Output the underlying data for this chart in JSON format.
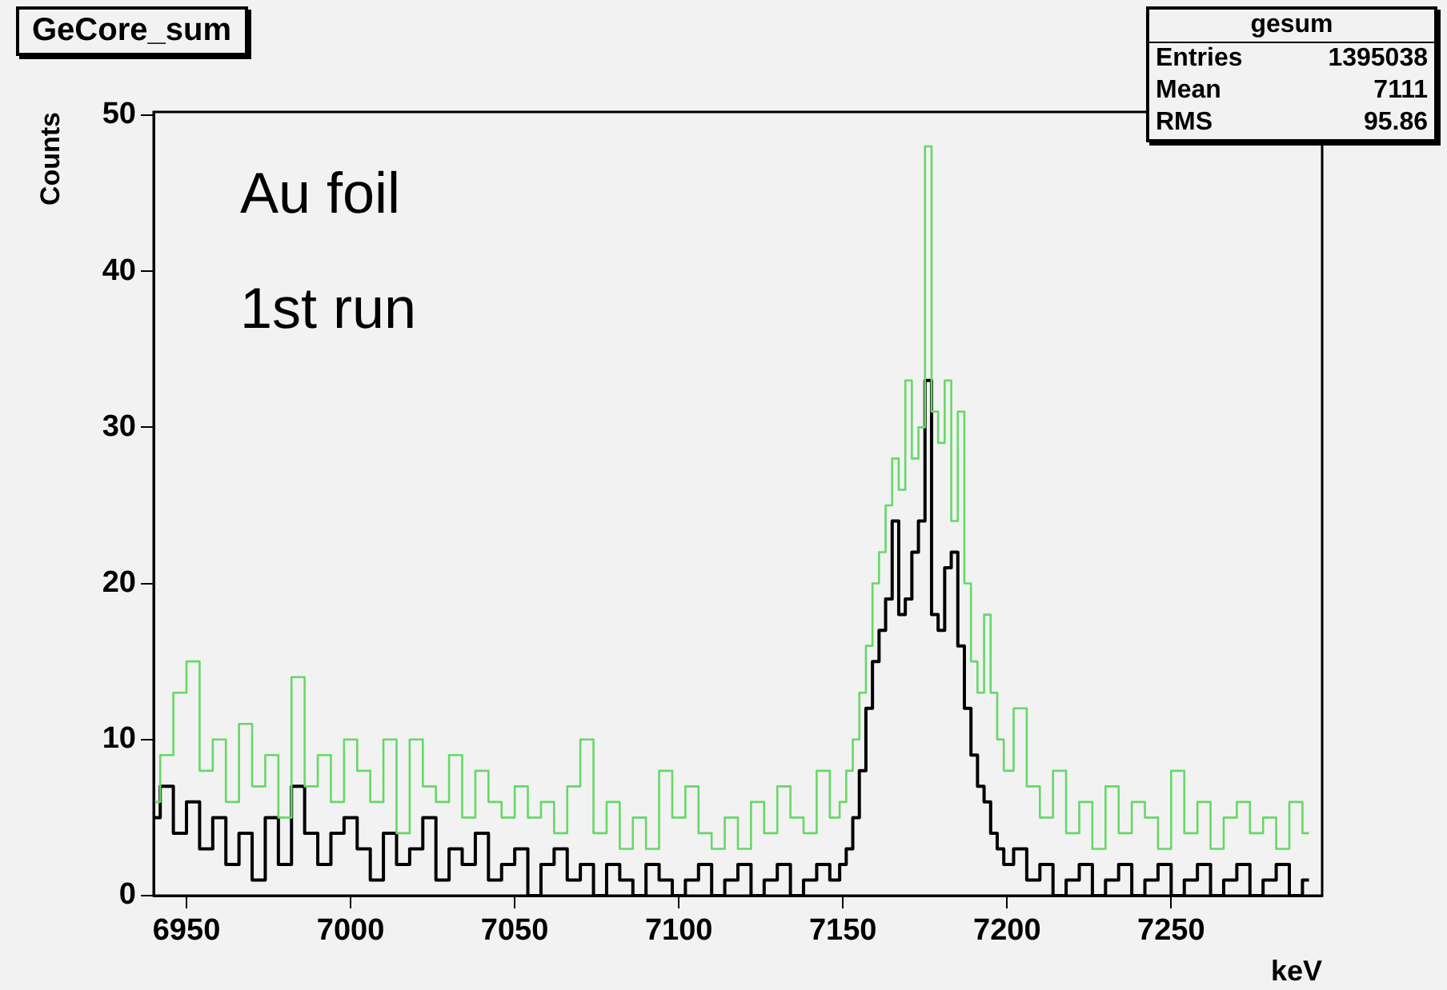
{
  "chart_data": {
    "type": "step",
    "title": "GeCore_sum",
    "xlabel": "keV",
    "ylabel": "Counts",
    "annotations": [
      "Au foil",
      "1st run",
      "gesum",
      "Entries 1395038",
      "Mean 7111",
      "RMS 95.86"
    ],
    "xlim": [
      6940,
      7296
    ],
    "xticks": [
      6950,
      7000,
      7050,
      7100,
      7150,
      7200,
      7250
    ],
    "ylim": [
      0,
      50.2
    ],
    "yticks": [
      0,
      10,
      20,
      30,
      40,
      50
    ],
    "grid": false,
    "legend": false,
    "x": [
      6940,
      6944,
      6948,
      6952,
      6956,
      6960,
      6964,
      6968,
      6972,
      6976,
      6980,
      6984,
      6988,
      6992,
      6996,
      7000,
      7004,
      7008,
      7012,
      7016,
      7020,
      7024,
      7028,
      7032,
      7036,
      7040,
      7044,
      7048,
      7052,
      7056,
      7060,
      7064,
      7068,
      7072,
      7076,
      7080,
      7084,
      7088,
      7092,
      7096,
      7100,
      7104,
      7108,
      7112,
      7116,
      7120,
      7124,
      7128,
      7132,
      7136,
      7140,
      7144,
      7148,
      7150,
      7152,
      7154,
      7156,
      7158,
      7160,
      7162,
      7164,
      7166,
      7168,
      7170,
      7172,
      7174,
      7176,
      7178,
      7180,
      7182,
      7184,
      7186,
      7188,
      7190,
      7192,
      7194,
      7196,
      7198,
      7200,
      7204,
      7208,
      7212,
      7216,
      7220,
      7224,
      7228,
      7232,
      7236,
      7240,
      7244,
      7248,
      7252,
      7256,
      7260,
      7264,
      7268,
      7272,
      7276,
      7280,
      7284,
      7288,
      7292
    ],
    "series": [
      {
        "color": "#66d866",
        "values": [
          6,
          9,
          13,
          15,
          8,
          10,
          6,
          11,
          7,
          9,
          5,
          14,
          7,
          9,
          6,
          10,
          8,
          6,
          10,
          4,
          10,
          7,
          6,
          9,
          5,
          8,
          6,
          5,
          7,
          5,
          6,
          4,
          7,
          10,
          4,
          6,
          3,
          5,
          3,
          8,
          5,
          7,
          4,
          3,
          5,
          3,
          6,
          4,
          7,
          5,
          4,
          8,
          5,
          6,
          8,
          10,
          13,
          16,
          20,
          22,
          25,
          28,
          26,
          33,
          28,
          30,
          48,
          31,
          29,
          33,
          24,
          31,
          20,
          15,
          13,
          18,
          13,
          10,
          8,
          12,
          7,
          5,
          8,
          4,
          6,
          3,
          7,
          4,
          6,
          5,
          3,
          8,
          4,
          6,
          3,
          5,
          6,
          4,
          5,
          3,
          6,
          4
        ]
      },
      {
        "color": "#000000",
        "values": [
          5,
          7,
          4,
          6,
          3,
          5,
          2,
          4,
          1,
          5,
          2,
          7,
          4,
          2,
          4,
          5,
          3,
          1,
          4,
          2,
          3,
          5,
          1,
          3,
          2,
          4,
          1,
          2,
          3,
          0,
          2,
          3,
          1,
          2,
          0,
          2,
          1,
          0,
          2,
          1,
          0,
          1,
          2,
          0,
          1,
          2,
          0,
          1,
          2,
          0,
          1,
          2,
          1,
          2,
          3,
          5,
          8,
          12,
          15,
          17,
          19,
          24,
          18,
          19,
          22,
          24,
          33,
          18,
          17,
          21,
          22,
          16,
          12,
          9,
          7,
          6,
          4,
          3,
          2,
          3,
          1,
          2,
          0,
          1,
          2,
          0,
          1,
          2,
          0,
          1,
          2,
          0,
          1,
          2,
          0,
          1,
          2,
          0,
          1,
          2,
          0,
          1
        ]
      }
    ]
  }
}
